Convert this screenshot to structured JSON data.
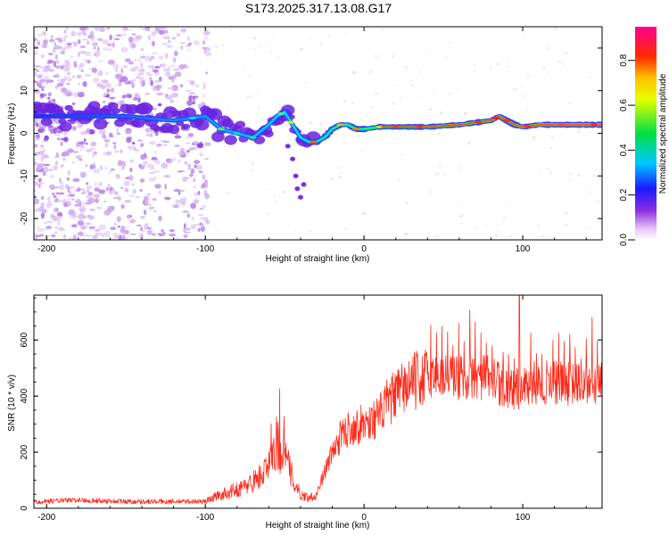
{
  "title": "S173.2025.317.13.08.G17",
  "chart_data": [
    {
      "type": "heatmap",
      "name": "spectrogram",
      "xlabel": "Height of straight line (km)",
      "ylabel": "Frequency (Hz)",
      "xlim": [
        -208,
        150
      ],
      "ylim": [
        -25,
        25
      ],
      "xticks": [
        -200,
        -100,
        0,
        100
      ],
      "yticks": [
        -20,
        -10,
        0,
        10,
        20
      ],
      "colorbar": {
        "label": "Normalized spectral amplitude",
        "range": [
          0,
          0.95
        ],
        "ticks": [
          "0.0",
          "0.2",
          "0.4",
          "0.6",
          "0.8"
        ]
      },
      "ridge": {
        "description": "dominant frequency trace vs height",
        "x": [
          -208,
          -180,
          -150,
          -120,
          -100,
          -90,
          -80,
          -70,
          -60,
          -55,
          -50,
          -45,
          -40,
          -35,
          -30,
          -25,
          -20,
          -15,
          -10,
          -5,
          0,
          10,
          20,
          40,
          60,
          80,
          85,
          90,
          95,
          100,
          110,
          130,
          150
        ],
        "y": [
          4,
          4,
          4,
          3,
          4,
          1,
          0,
          -1,
          2,
          4,
          5,
          2,
          -1,
          -2,
          -2,
          -1,
          1,
          2,
          2,
          1,
          1,
          1.5,
          1.5,
          1.5,
          2,
          3,
          4,
          3,
          2,
          1.5,
          2,
          2,
          2
        ]
      }
    },
    {
      "type": "line",
      "name": "snr",
      "xlabel": "Height of straight line (km)",
      "ylabel": "SNR (10 * v/v)",
      "xlim": [
        -208,
        150
      ],
      "ylim": [
        0,
        760
      ],
      "xticks": [
        -200,
        -100,
        0,
        100
      ],
      "yticks": [
        0,
        200,
        400,
        600
      ],
      "series": [
        {
          "name": "SNR",
          "color": "#ff2a1a",
          "envelope_x": [
            -208,
            -180,
            -150,
            -120,
            -100,
            -95,
            -85,
            -75,
            -65,
            -60,
            -55,
            -50,
            -45,
            -40,
            -35,
            -30,
            -25,
            -20,
            -15,
            -10,
            -5,
            0,
            5,
            10,
            15,
            20,
            25,
            30,
            35,
            40,
            50,
            60,
            70,
            80,
            90,
            95,
            100,
            110,
            120,
            130,
            140,
            150
          ],
          "envelope_y": [
            25,
            30,
            25,
            25,
            25,
            40,
            60,
            80,
            120,
            150,
            220,
            200,
            110,
            50,
            40,
            50,
            130,
            200,
            260,
            290,
            300,
            310,
            320,
            340,
            390,
            410,
            440,
            460,
            470,
            480,
            480,
            475,
            480,
            470,
            440,
            430,
            440,
            460,
            455,
            450,
            450,
            450
          ]
        }
      ]
    }
  ]
}
